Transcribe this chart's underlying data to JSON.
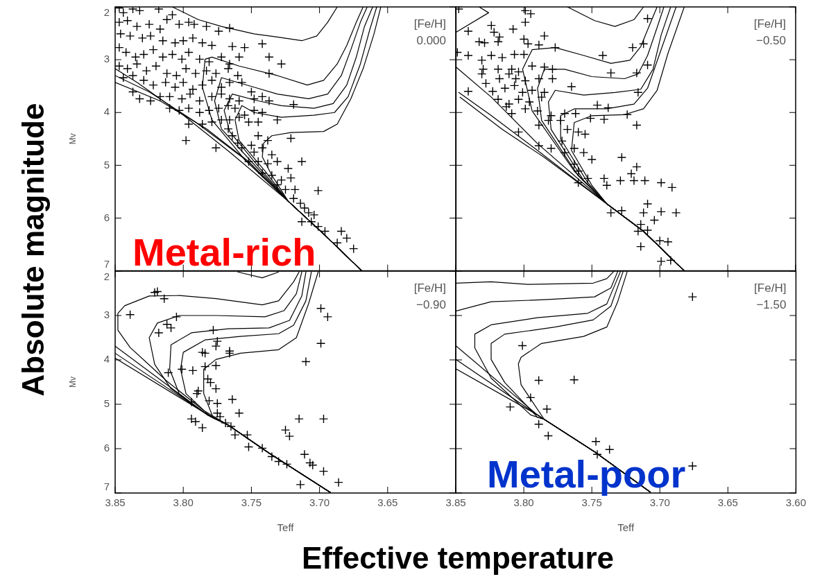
{
  "chart_data": [
    {
      "type": "scatter",
      "title": "[Fe/H]",
      "subtitle": "0.000",
      "ylabel": "Mv",
      "marker": "cross",
      "tick_labels": "y",
      "xlim": [
        3.85,
        3.6
      ],
      "xticks": [
        3.85,
        3.8,
        3.75,
        3.7,
        3.65,
        3.6
      ],
      "ylim": [
        7,
        2
      ],
      "yticks": [
        2,
        3,
        4,
        5,
        6,
        7
      ],
      "annotations": [
        "Metal-rich",
        "Absolute magnitude"
      ],
      "series": [
        {
          "type": "scatter",
          "color": "#000000",
          "x": [
            3.847,
            3.844,
            3.837,
            3.832,
            3.818,
            3.847,
            3.841,
            3.834,
            3.825,
            3.817,
            3.812,
            3.808,
            3.803,
            3.796,
            3.792,
            3.783,
            3.774,
            3.766,
            3.846,
            3.839,
            3.83,
            3.824,
            3.815,
            3.806,
            3.8,
            3.793,
            3.786,
            3.779,
            3.764,
            3.755,
            3.742,
            3.737,
            3.728,
            3.737,
            3.847,
            3.842,
            3.835,
            3.829,
            3.822,
            3.815,
            3.808,
            3.801,
            3.796,
            3.788,
            3.781,
            3.772,
            3.766,
            3.759,
            3.847,
            3.841,
            3.834,
            3.827,
            3.82,
            3.812,
            3.805,
            3.798,
            3.791,
            3.783,
            3.776,
            3.767,
            3.76,
            3.844,
            3.837,
            3.829,
            3.822,
            3.813,
            3.806,
            3.8,
            3.793,
            3.786,
            3.779,
            3.772,
            3.766,
            3.757,
            3.75,
            3.837,
            3.832,
            3.824,
            3.817,
            3.81,
            3.801,
            3.795,
            3.788,
            3.779,
            3.772,
            3.766,
            3.759,
            3.748,
            3.742,
            3.737,
            3.719,
            3.81,
            3.803,
            3.796,
            3.788,
            3.781,
            3.774,
            3.767,
            3.762,
            3.755,
            3.748,
            3.742,
            3.731,
            3.796,
            3.786,
            3.779,
            3.772,
            3.766,
            3.759,
            3.752,
            3.745,
            3.798,
            3.776,
            3.767,
            3.764,
            3.76,
            3.757,
            3.75,
            3.745,
            3.738,
            3.721,
            3.748,
            3.742,
            3.735,
            3.752,
            3.745,
            3.738,
            3.731,
            3.713,
            3.723,
            3.742,
            3.735,
            3.728,
            3.721,
            3.731,
            3.725,
            3.718,
            3.701,
            3.719,
            3.714,
            3.711,
            3.708,
            3.704,
            3.713,
            3.706,
            3.701,
            3.696,
            3.684,
            3.68,
            3.687,
            3.675
          ],
          "values": [
            2.02,
            2.11,
            2.04,
            2.07,
            2.04,
            2.29,
            2.26,
            2.37,
            2.33,
            2.42,
            2.24,
            2.15,
            2.33,
            2.29,
            2.33,
            2.37,
            2.46,
            2.4,
            2.51,
            2.55,
            2.59,
            2.55,
            2.64,
            2.68,
            2.64,
            2.59,
            2.68,
            2.73,
            2.75,
            2.77,
            2.7,
            2.95,
            3.08,
            3.26,
            2.77,
            2.86,
            2.95,
            2.9,
            2.81,
            2.95,
            2.9,
            2.99,
            2.86,
            2.99,
            3.04,
            2.95,
            3.08,
            2.95,
            3.12,
            3.17,
            3.08,
            3.21,
            3.12,
            3.26,
            3.3,
            3.17,
            3.26,
            3.21,
            3.26,
            3.17,
            3.3,
            3.34,
            3.3,
            3.39,
            3.48,
            3.43,
            3.52,
            3.43,
            3.56,
            3.48,
            3.39,
            3.52,
            3.43,
            3.43,
            3.61,
            3.61,
            3.74,
            3.78,
            3.7,
            3.7,
            3.74,
            3.65,
            3.78,
            3.7,
            3.65,
            3.74,
            3.78,
            3.74,
            3.7,
            3.78,
            3.85,
            3.92,
            3.96,
            3.92,
            4.0,
            3.96,
            3.92,
            3.87,
            3.92,
            4.05,
            3.96,
            4.0,
            4.14,
            4.22,
            4.22,
            4.18,
            4.14,
            4.14,
            4.09,
            4.18,
            4.18,
            4.53,
            4.67,
            4.31,
            4.44,
            4.58,
            4.67,
            4.62,
            4.44,
            4.53,
            4.49,
            4.75,
            4.67,
            4.8,
            4.93,
            4.93,
            4.97,
            4.93,
            4.93,
            5.06,
            5.15,
            5.19,
            5.28,
            5.24,
            5.37,
            5.46,
            5.46,
            5.48,
            5.63,
            5.72,
            5.81,
            5.9,
            5.94,
            6.07,
            6.07,
            6.16,
            6.25,
            6.25,
            6.38,
            6.47,
            6.58
          ]
        },
        {
          "type": "line",
          "color": "#000000",
          "marker": "none",
          "x": [
            3.669,
            3.697,
            3.723,
            3.766,
            3.8,
            3.834,
            3.85
          ],
          "values": [
            7.0,
            6.3,
            5.68,
            4.75,
            4.05,
            3.43,
            3.17
          ]
        },
        {
          "type": "line",
          "color": "#000000",
          "marker": "none",
          "x": [
            3.669,
            3.697,
            3.723,
            3.757,
            3.791,
            3.825,
            3.85
          ],
          "values": [
            7.0,
            6.3,
            5.68,
            4.84,
            4.18,
            3.61,
            3.3
          ]
        },
        {
          "type": "line",
          "color": "#000000",
          "marker": "none",
          "x": [
            3.669,
            3.697,
            3.723,
            3.752,
            3.783,
            3.817,
            3.85
          ],
          "values": [
            7.0,
            6.3,
            5.68,
            4.93,
            4.31,
            3.78,
            3.43
          ]
        },
        {
          "type": "line",
          "color": "#000000",
          "marker": "none",
          "x": [
            3.669,
            3.697,
            3.723,
            3.755,
            3.779,
            3.786,
            3.784,
            3.779,
            3.759,
            3.731,
            3.709,
            3.697,
            3.687,
            3.68,
            3.673,
            3.668
          ],
          "values": [
            7.0,
            6.3,
            5.68,
            4.89,
            4.14,
            3.52,
            2.99,
            2.95,
            3.12,
            3.3,
            3.48,
            3.39,
            3.08,
            2.73,
            2.29,
            2.0
          ]
        },
        {
          "type": "line",
          "color": "#000000",
          "marker": "none",
          "x": [
            3.669,
            3.697,
            3.723,
            3.75,
            3.772,
            3.777,
            3.772,
            3.748,
            3.731,
            3.708,
            3.694,
            3.684,
            3.677,
            3.67,
            3.665
          ],
          "values": [
            7.0,
            6.3,
            5.68,
            4.93,
            4.31,
            3.78,
            3.34,
            3.52,
            3.65,
            3.74,
            3.65,
            3.3,
            2.81,
            2.29,
            2.0
          ]
        },
        {
          "type": "line",
          "color": "#000000",
          "marker": "none",
          "x": [
            3.669,
            3.697,
            3.723,
            3.745,
            3.766,
            3.77,
            3.764,
            3.745,
            3.728,
            3.704,
            3.69,
            3.68,
            3.673,
            3.667,
            3.661
          ],
          "values": [
            7.0,
            6.3,
            5.68,
            5.02,
            4.36,
            3.96,
            3.65,
            3.78,
            3.87,
            3.92,
            3.83,
            3.48,
            2.95,
            2.37,
            2.0
          ]
        },
        {
          "type": "line",
          "color": "#000000",
          "marker": "none",
          "x": [
            3.669,
            3.697,
            3.723,
            3.74,
            3.759,
            3.762,
            3.757,
            3.748,
            3.728,
            3.704,
            3.689,
            3.679,
            3.67,
            3.663,
            3.658
          ],
          "values": [
            7.0,
            6.3,
            5.68,
            5.11,
            4.53,
            4.14,
            3.87,
            4.0,
            4.09,
            4.05,
            4.0,
            3.7,
            3.08,
            2.42,
            2.0
          ]
        },
        {
          "type": "line",
          "color": "#000000",
          "marker": "none",
          "x": [
            3.669,
            3.697,
            3.723,
            3.735,
            3.742,
            3.741,
            3.735,
            3.721,
            3.697,
            3.687,
            3.677,
            3.668,
            3.66,
            3.655
          ],
          "values": [
            7.0,
            6.3,
            5.68,
            5.19,
            4.84,
            4.58,
            4.44,
            4.38,
            4.36,
            4.22,
            3.74,
            3.17,
            2.51,
            2.0
          ]
        },
        {
          "type": "line",
          "color": "#000000",
          "marker": "none",
          "x": [
            3.808,
            3.789,
            3.772,
            3.748,
            3.731,
            3.713,
            3.702,
            3.694,
            3.687
          ],
          "values": [
            2.0,
            2.24,
            2.37,
            2.51,
            2.57,
            2.64,
            2.55,
            2.29,
            2.0
          ]
        }
      ]
    },
    {
      "type": "scatter",
      "title": "[Fe/H]",
      "subtitle": "−0.50",
      "marker": "cross",
      "tick_labels": false,
      "xlim": [
        3.85,
        3.6
      ],
      "xticks": [
        3.85,
        3.8,
        3.75,
        3.7,
        3.65,
        3.6
      ],
      "ylim": [
        7,
        2
      ],
      "yticks": [
        2,
        3,
        4,
        5,
        6,
        7
      ],
      "series": [
        {
          "type": "scatter",
          "color": "#000000",
          "x": [
            3.848,
            3.799,
            3.795,
            3.799,
            3.709,
            3.824,
            3.841,
            3.808,
            3.822,
            3.818,
            3.785,
            3.833,
            3.829,
            3.819,
            3.8,
            3.797,
            3.789,
            3.777,
            3.72,
            3.712,
            3.849,
            3.841,
            3.831,
            3.824,
            3.816,
            3.807,
            3.8,
            3.742,
            3.83,
            3.819,
            3.809,
            3.804,
            3.794,
            3.785,
            3.779,
            3.736,
            3.717,
            3.709,
            3.831,
            3.818,
            3.811,
            3.806,
            3.799,
            3.789,
            3.779,
            3.765,
            3.828,
            3.823,
            3.814,
            3.807,
            3.801,
            3.794,
            3.785,
            3.841,
            3.716,
            3.819,
            3.811,
            3.804,
            3.796,
            3.787,
            3.813,
            3.809,
            3.799,
            3.79,
            3.78,
            3.77,
            3.762,
            3.751,
            3.746,
            3.738,
            3.741,
            3.724,
            3.717,
            3.804,
            3.789,
            3.782,
            3.773,
            3.768,
            3.76,
            3.755,
            3.789,
            3.78,
            3.772,
            3.77,
            3.763,
            3.756,
            3.763,
            3.75,
            3.728,
            3.717,
            3.721,
            3.76,
            3.753,
            3.76,
            3.741,
            3.739,
            3.729,
            3.719,
            3.711,
            3.699,
            3.691,
            3.736,
            3.728,
            3.712,
            3.709,
            3.699,
            3.688,
            3.704,
            3.714,
            3.716,
            3.709,
            3.714,
            3.7,
            3.694,
            3.699,
            3.692
          ],
          "values": [
            2.04,
            2.07,
            2.13,
            2.29,
            2.22,
            2.35,
            2.46,
            2.42,
            2.48,
            2.57,
            2.55,
            2.66,
            2.68,
            2.66,
            2.61,
            2.7,
            2.72,
            2.77,
            2.77,
            2.7,
            2.86,
            2.92,
            3.01,
            2.92,
            2.96,
            2.9,
            2.9,
            2.92,
            3.18,
            3.18,
            3.18,
            3.23,
            3.12,
            3.14,
            3.18,
            3.25,
            3.25,
            3.1,
            3.27,
            3.36,
            3.27,
            3.36,
            3.4,
            3.36,
            3.36,
            3.51,
            3.45,
            3.6,
            3.54,
            3.49,
            3.62,
            3.58,
            3.62,
            3.6,
            3.62,
            3.75,
            3.84,
            3.75,
            3.8,
            3.71,
            3.89,
            4.02,
            3.93,
            3.97,
            4.06,
            4.02,
            4.02,
            4.11,
            3.86,
            3.91,
            4.13,
            4.04,
            4.24,
            4.37,
            4.24,
            4.15,
            4.15,
            4.32,
            4.37,
            4.41,
            4.63,
            4.68,
            4.54,
            4.76,
            4.68,
            4.76,
            4.98,
            4.89,
            4.85,
            5.03,
            5.16,
            5.11,
            5.25,
            5.33,
            5.25,
            5.38,
            5.29,
            5.29,
            5.29,
            5.33,
            5.42,
            5.9,
            5.86,
            5.9,
            5.73,
            5.88,
            5.9,
            6.04,
            6.12,
            6.25,
            6.23,
            6.54,
            6.43,
            6.45,
            6.82,
            6.8
          ]
        },
        {
          "type": "line",
          "color": "#000000",
          "marker": "none",
          "x": [
            3.682,
            3.712,
            3.739,
            3.79,
            3.824,
            3.85
          ],
          "values": [
            7.0,
            6.25,
            5.73,
            4.59,
            3.71,
            3.14
          ]
        },
        {
          "type": "line",
          "color": "#000000",
          "marker": "none",
          "x": [
            3.682,
            3.712,
            3.739,
            3.79,
            3.824,
            3.848
          ],
          "values": [
            7.0,
            6.25,
            5.73,
            4.72,
            4.06,
            3.62
          ]
        },
        {
          "type": "line",
          "color": "#000000",
          "marker": "none",
          "x": [
            3.682,
            3.712,
            3.739,
            3.785,
            3.816,
            3.847
          ],
          "values": [
            7.0,
            6.25,
            5.73,
            4.85,
            4.32,
            3.71
          ]
        },
        {
          "type": "line",
          "color": "#000000",
          "marker": "none",
          "x": [
            3.85,
            3.826,
            3.833
          ],
          "values": [
            2.48,
            2.11,
            2.0
          ]
        },
        {
          "type": "line",
          "color": "#000000",
          "marker": "none",
          "x": [
            3.682,
            3.712,
            3.739,
            3.763,
            3.794,
            3.801,
            3.794,
            3.777,
            3.756,
            3.736,
            3.722,
            3.714,
            3.707,
            3.702
          ],
          "values": [
            7.0,
            6.25,
            5.73,
            5.11,
            3.97,
            3.18,
            2.81,
            2.77,
            2.92,
            3.07,
            3.01,
            2.75,
            2.31,
            2.0
          ]
        },
        {
          "type": "line",
          "color": "#000000",
          "marker": "none",
          "x": [
            3.682,
            3.712,
            3.739,
            3.76,
            3.787,
            3.79,
            3.785,
            3.77,
            3.75,
            3.726,
            3.716,
            3.709,
            3.702,
            3.697
          ],
          "values": [
            7.0,
            6.25,
            5.73,
            5.2,
            4.15,
            3.54,
            3.18,
            3.18,
            3.32,
            3.36,
            3.27,
            2.92,
            2.39,
            2.0
          ]
        },
        {
          "type": "line",
          "color": "#000000",
          "marker": "none",
          "x": [
            3.682,
            3.712,
            3.739,
            3.756,
            3.78,
            3.782,
            3.777,
            3.756,
            3.733,
            3.714,
            3.705,
            3.699,
            3.692
          ],
          "values": [
            7.0,
            6.25,
            5.73,
            5.29,
            4.32,
            3.8,
            3.58,
            3.67,
            3.62,
            3.56,
            3.18,
            2.53,
            2.0
          ]
        },
        {
          "type": "line",
          "color": "#000000",
          "marker": "none",
          "x": [
            3.682,
            3.712,
            3.739,
            3.753,
            3.773,
            3.773,
            3.763,
            3.739,
            3.719,
            3.709,
            3.7,
            3.688
          ],
          "values": [
            7.0,
            6.25,
            5.73,
            5.33,
            4.5,
            4.06,
            3.93,
            3.93,
            3.84,
            3.54,
            2.88,
            2.0
          ]
        },
        {
          "type": "line",
          "color": "#000000",
          "marker": "none",
          "x": [
            3.682,
            3.712,
            3.739,
            3.75,
            3.765,
            3.763,
            3.75,
            3.726,
            3.712,
            3.702,
            3.694,
            3.682
          ],
          "values": [
            7.0,
            6.25,
            5.73,
            5.38,
            4.72,
            4.19,
            4.06,
            4.04,
            3.93,
            3.58,
            2.88,
            2.0
          ]
        },
        {
          "type": "line",
          "color": "#000000",
          "marker": "none",
          "x": [
            3.768,
            3.748,
            3.733,
            3.719,
            3.712
          ],
          "values": [
            2.0,
            2.26,
            2.37,
            2.24,
            2.0
          ]
        }
      ]
    },
    {
      "type": "scatter",
      "title": "[Fe/H]",
      "subtitle": "−0.90",
      "ylabel": "Mv",
      "xlabel": "Teff",
      "marker": "cross",
      "xlim": [
        3.85,
        3.6
      ],
      "xticks": [
        3.85,
        {
          "value": 3.8,
          "label": "3.80"
        },
        3.75,
        {
          "value": 3.7,
          "label": "3.70"
        },
        3.65,
        {
          "value": 3.6,
          "label": null
        }
      ],
      "ylim": [
        7,
        2
      ],
      "yticks": [
        2,
        3,
        4,
        5,
        6,
        7
      ],
      "series": [
        {
          "type": "scatter",
          "color": "#000000",
          "x": [
            3.821,
            3.819,
            3.814,
            3.839,
            3.805,
            3.812,
            3.809,
            3.818,
            3.778,
            3.775,
            3.776,
            3.786,
            3.784,
            3.766,
            3.766,
            3.699,
            3.694,
            3.699,
            3.71,
            3.811,
            3.801,
            3.793,
            3.784,
            3.776,
            3.782,
            3.78,
            3.776,
            3.789,
            3.79,
            3.794,
            3.781,
            3.775,
            3.764,
            3.759,
            3.775,
            3.773,
            3.794,
            3.791,
            3.786,
            3.769,
            3.765,
            3.762,
            3.753,
            3.752,
            3.742,
            3.735,
            3.73,
            3.724,
            3.725,
            3.722,
            3.715,
            3.697,
            3.711,
            3.707,
            3.705,
            3.697,
            3.714,
            3.686
          ],
          "values": [
            2.48,
            2.46,
            2.62,
            2.98,
            3.03,
            3.2,
            3.28,
            3.39,
            3.33,
            3.58,
            3.69,
            3.83,
            3.85,
            3.8,
            3.85,
            2.84,
            3.03,
            3.63,
            4.04,
            4.29,
            4.21,
            4.24,
            4.15,
            4.13,
            4.43,
            4.51,
            4.65,
            4.7,
            4.76,
            4.95,
            4.92,
            4.98,
            4.89,
            5.2,
            5.2,
            5.28,
            5.33,
            5.39,
            5.53,
            5.42,
            5.5,
            5.69,
            5.69,
            5.96,
            5.99,
            6.18,
            6.29,
            6.35,
            5.58,
            5.72,
            5.33,
            5.33,
            6.13,
            6.32,
            6.37,
            6.51,
            6.81,
            6.76
          ]
        },
        {
          "type": "line",
          "color": "#000000",
          "marker": "none",
          "x": [
            3.692,
            3.737,
            3.767,
            3.785,
            3.812,
            3.839,
            3.848,
            3.848,
            3.843,
            3.825,
            3.803,
            3.776,
            3.742,
            3.73,
            3.719,
            3.715
          ],
          "values": [
            6.99,
            6.1,
            5.47,
            5.14,
            4.48,
            3.72,
            3.33,
            2.95,
            2.78,
            2.56,
            2.55,
            2.62,
            2.76,
            2.67,
            2.24,
            2.02
          ]
        },
        {
          "type": "line",
          "color": "#000000",
          "marker": "none",
          "x": [
            3.692,
            3.737,
            3.767,
            3.784,
            3.809,
            3.821,
            3.825,
            3.819,
            3.803,
            3.776,
            3.74,
            3.726,
            3.717,
            3.713
          ],
          "values": [
            6.99,
            6.1,
            5.47,
            5.2,
            4.65,
            4.1,
            3.5,
            3.17,
            3.0,
            3.0,
            3.03,
            2.89,
            2.51,
            2.02
          ]
        },
        {
          "type": "line",
          "color": "#000000",
          "marker": "none",
          "x": [
            3.692,
            3.737,
            3.767,
            3.782,
            3.803,
            3.81,
            3.809,
            3.794,
            3.767,
            3.737,
            3.722,
            3.713,
            3.71
          ],
          "values": [
            6.99,
            6.1,
            5.47,
            5.25,
            4.76,
            4.21,
            3.66,
            3.39,
            3.3,
            3.28,
            3.11,
            2.56,
            2.02
          ]
        },
        {
          "type": "line",
          "color": "#000000",
          "marker": "none",
          "x": [
            3.692,
            3.737,
            3.767,
            3.78,
            3.798,
            3.802,
            3.8,
            3.784,
            3.758,
            3.73,
            3.719,
            3.71,
            3.706
          ],
          "values": [
            6.99,
            6.1,
            5.47,
            5.28,
            4.76,
            4.21,
            3.83,
            3.55,
            3.47,
            3.41,
            3.22,
            2.67,
            2.02
          ]
        },
        {
          "type": "line",
          "color": "#000000",
          "marker": "none",
          "x": [
            3.692,
            3.737,
            3.767,
            3.778,
            3.785,
            3.785,
            3.776,
            3.758,
            3.73,
            3.717,
            3.708,
            3.701
          ],
          "values": [
            6.99,
            6.1,
            5.47,
            5.31,
            4.76,
            4.21,
            3.99,
            3.85,
            3.77,
            3.5,
            2.73,
            2.02
          ]
        },
        {
          "type": "line",
          "color": "#000000",
          "marker": "none",
          "x": [
            3.692,
            3.737,
            3.767,
            3.784,
            3.85
          ],
          "values": [
            6.99,
            6.1,
            5.47,
            5.2,
            3.69
          ]
        },
        {
          "type": "line",
          "color": "#000000",
          "marker": "none",
          "x": [
            3.692,
            3.737,
            3.767,
            3.784,
            3.85
          ],
          "values": [
            6.99,
            6.1,
            5.47,
            5.2,
            3.85
          ]
        },
        {
          "type": "line",
          "color": "#000000",
          "marker": "none",
          "x": [
            3.692,
            3.737,
            3.767,
            3.784,
            3.85
          ],
          "values": [
            6.99,
            6.1,
            5.47,
            5.2,
            3.96
          ]
        },
        {
          "type": "line",
          "color": "#000000",
          "marker": "none",
          "x": [
            3.76,
            3.742,
            3.73
          ],
          "values": [
            2.02,
            2.15,
            2.02
          ]
        }
      ]
    },
    {
      "type": "scatter",
      "title": "[Fe/H]",
      "subtitle": "−1.50",
      "xlabel": "Teff",
      "marker": "cross",
      "tick_labels": "x",
      "xlim": [
        3.85,
        3.6
      ],
      "xticks": [
        3.85,
        {
          "value": 3.8,
          "label": "3.80"
        },
        3.75,
        {
          "value": 3.7,
          "label": "3.70"
        },
        3.65,
        {
          "value": 3.6,
          "label": "3.60"
        }
      ],
      "ylim": [
        7,
        2
      ],
      "yticks": [
        2,
        3,
        4,
        5,
        6,
        7
      ],
      "annotations": [
        "Metal-poor",
        "Effective temperature"
      ],
      "series": [
        {
          "type": "scatter",
          "color": "#000000",
          "x": [
            3.676,
            3.801,
            3.789,
            3.763,
            3.795,
            3.81,
            3.783,
            3.789,
            3.782,
            3.747,
            3.737,
            3.746,
            3.676
          ],
          "values": [
            2.58,
            3.68,
            4.46,
            4.45,
            4.85,
            5.06,
            5.11,
            5.45,
            5.71,
            5.84,
            6.02,
            6.13,
            6.39
          ]
        },
        {
          "type": "line",
          "color": "#000000",
          "marker": "none",
          "x": [
            3.85,
            3.824,
            3.797,
            3.749,
            3.739,
            3.734
          ],
          "values": [
            2.27,
            2.24,
            2.3,
            2.27,
            2.17,
            2.01
          ]
        },
        {
          "type": "line",
          "color": "#000000",
          "marker": "none",
          "x": [
            3.85,
            3.824,
            3.782,
            3.748,
            3.736,
            3.731
          ],
          "values": [
            2.9,
            2.69,
            2.64,
            2.58,
            2.38,
            2.01
          ]
        },
        {
          "type": "line",
          "color": "#000000",
          "marker": "none",
          "x": [
            3.707,
            3.748,
            3.785,
            3.795,
            3.824,
            3.836,
            3.836,
            3.824,
            3.79,
            3.753,
            3.739,
            3.729
          ],
          "values": [
            6.98,
            6.07,
            5.34,
            5.24,
            4.41,
            3.73,
            3.42,
            3.21,
            3.05,
            2.95,
            2.74,
            2.01
          ]
        },
        {
          "type": "line",
          "color": "#000000",
          "marker": "none",
          "x": [
            3.707,
            3.748,
            3.785,
            3.79,
            3.814,
            3.824,
            3.824,
            3.814,
            3.777,
            3.749,
            3.736,
            3.727
          ],
          "values": [
            6.98,
            6.07,
            5.34,
            5.29,
            4.51,
            3.99,
            3.63,
            3.42,
            3.26,
            3.1,
            2.79,
            2.01
          ]
        },
        {
          "type": "line",
          "color": "#000000",
          "marker": "none",
          "x": [
            3.707,
            3.748,
            3.785,
            3.802,
            3.804,
            3.802,
            3.787,
            3.756,
            3.739,
            3.731,
            3.724
          ],
          "values": [
            6.98,
            6.07,
            5.34,
            4.56,
            4.09,
            3.94,
            3.63,
            3.47,
            3.26,
            2.69,
            2.01
          ]
        },
        {
          "type": "line",
          "color": "#000000",
          "marker": "none",
          "x": [
            3.707,
            3.748,
            3.785,
            3.79,
            3.85
          ],
          "values": [
            6.98,
            6.07,
            5.34,
            5.24,
            3.68
          ]
        },
        {
          "type": "line",
          "color": "#000000",
          "marker": "none",
          "x": [
            3.707,
            3.748,
            3.785,
            3.79,
            3.85
          ],
          "values": [
            6.98,
            6.07,
            5.34,
            5.24,
            3.99
          ]
        },
        {
          "type": "line",
          "color": "#000000",
          "marker": "none",
          "x": [
            3.707,
            3.748,
            3.785,
            3.79,
            3.85
          ],
          "values": [
            6.98,
            6.07,
            5.34,
            5.24,
            4.2
          ]
        }
      ]
    }
  ]
}
